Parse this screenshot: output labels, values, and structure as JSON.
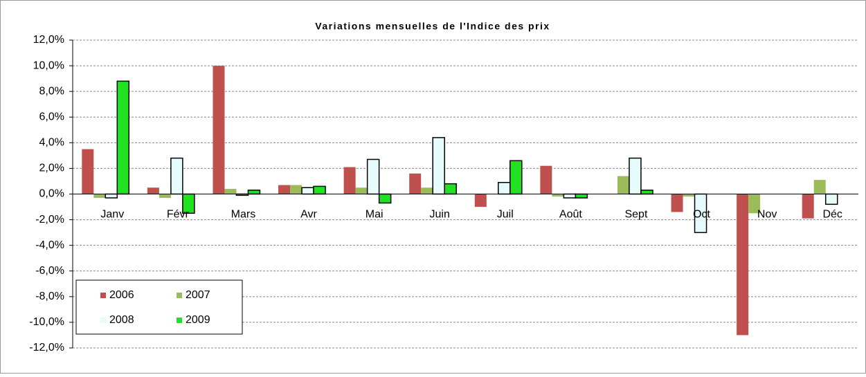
{
  "chart_data": {
    "type": "bar",
    "title": "Variations mensuelles de l'Indice des prix",
    "categories": [
      "Janv",
      "Févr",
      "Mars",
      "Avr",
      "Mai",
      "Juin",
      "Juil",
      "Août",
      "Sept",
      "Oct",
      "Nov",
      "Déc"
    ],
    "series": [
      {
        "name": "2006",
        "color": "#c0504d",
        "values": [
          3.5,
          0.5,
          10.0,
          0.7,
          2.1,
          1.6,
          -1.0,
          2.2,
          null,
          -1.4,
          -11.0,
          -1.9
        ]
      },
      {
        "name": "2007",
        "color": "#9bbb59",
        "values": [
          -0.3,
          -0.3,
          0.4,
          0.7,
          0.5,
          0.5,
          null,
          -0.2,
          1.4,
          -0.2,
          -1.5,
          1.1
        ]
      },
      {
        "name": "2008",
        "color": "#e6fcfc",
        "values": [
          -0.3,
          2.8,
          -0.1,
          0.5,
          2.7,
          4.4,
          0.9,
          -0.3,
          2.8,
          -3.0,
          null,
          -0.8
        ]
      },
      {
        "name": "2009",
        "color": "#22e022",
        "values": [
          8.8,
          -1.5,
          0.3,
          0.6,
          -0.7,
          0.8,
          2.6,
          -0.3,
          0.3,
          null,
          null,
          null
        ]
      }
    ],
    "ylim": [
      -12,
      12
    ],
    "yticks": [
      {
        "value": -12,
        "label": "-12,0%"
      },
      {
        "value": -10,
        "label": "-10,0%"
      },
      {
        "value": -8,
        "label": "-8,0%"
      },
      {
        "value": -6,
        "label": "-6,0%"
      },
      {
        "value": -4,
        "label": "-4,0%"
      },
      {
        "value": -2,
        "label": "-2,0%"
      },
      {
        "value": 0,
        "label": "0,0%"
      },
      {
        "value": 2,
        "label": "2,0%"
      },
      {
        "value": 4,
        "label": "4,0%"
      },
      {
        "value": 6,
        "label": "6,0%"
      },
      {
        "value": 8,
        "label": "8,0%"
      },
      {
        "value": 10,
        "label": "10,0%"
      },
      {
        "value": 12,
        "label": "12,0%"
      }
    ],
    "grid": true,
    "legend": "bottom-left"
  }
}
